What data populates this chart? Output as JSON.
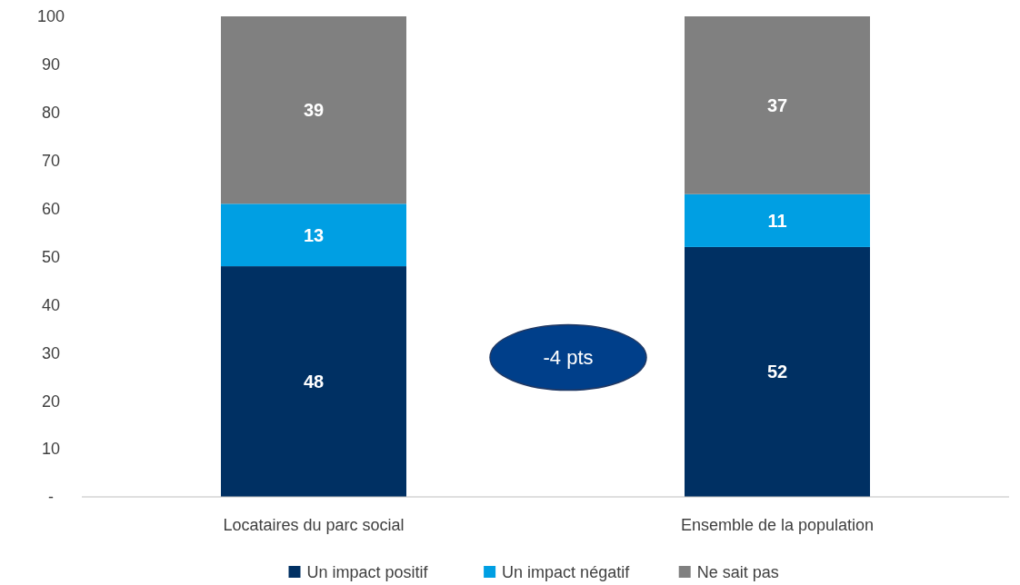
{
  "chart_data": {
    "type": "bar",
    "stacked": true,
    "categories": [
      "Locataires du parc social",
      "Ensemble de la population"
    ],
    "series": [
      {
        "name": "Un impact positif",
        "color": "#003063",
        "values": [
          48,
          52
        ]
      },
      {
        "name": "Un impact négatif",
        "color": "#009fe3",
        "values": [
          13,
          11
        ]
      },
      {
        "name": "Ne sait pas",
        "color": "#808080",
        "values": [
          39,
          37
        ]
      }
    ],
    "ylim": [
      0,
      100
    ],
    "yticks": [
      {
        "value": 0,
        "label": "-"
      },
      10,
      20,
      30,
      40,
      50,
      60,
      70,
      80,
      90,
      100
    ],
    "data_labels": true,
    "legend": "bottom",
    "annotations": [
      "-4 pts"
    ]
  }
}
